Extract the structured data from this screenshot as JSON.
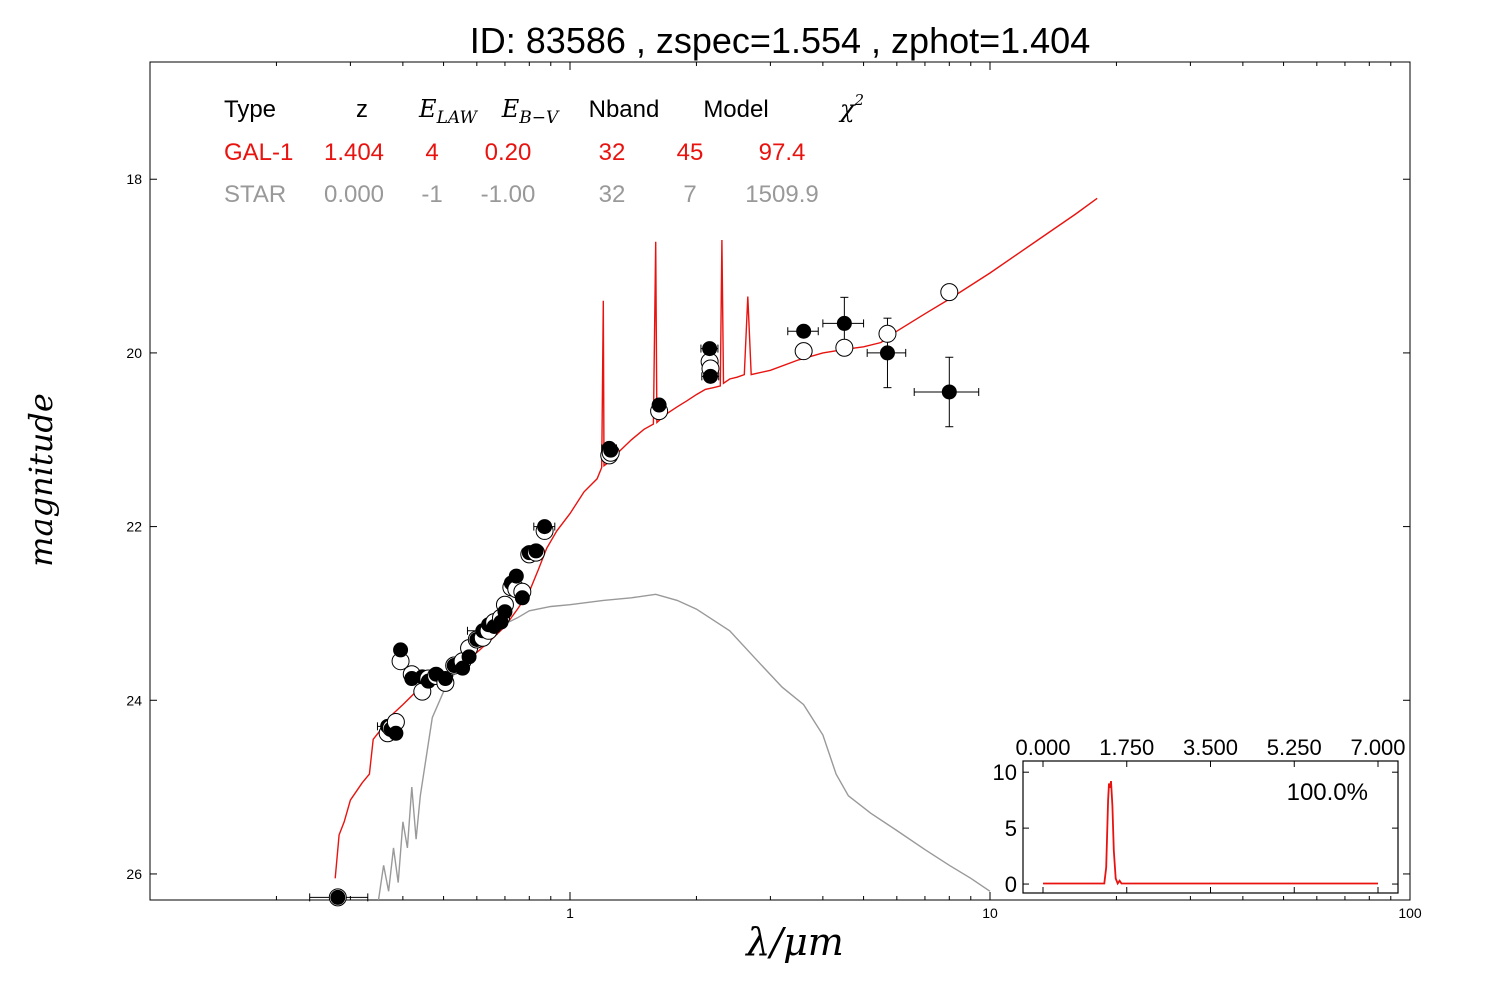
{
  "title": "ID:  83586 , zspec=1.554 , zphot=1.404",
  "chart_data": {
    "type": "scatter",
    "xlabel": "λ/μm",
    "ylabel": "magnitude",
    "x_scale": "log",
    "xlim": [
      0.1,
      100
    ],
    "ylim": [
      26.3,
      16.65
    ],
    "x_ticks": [
      "1",
      "10",
      "100"
    ],
    "y_ticks": [
      "18",
      "20",
      "22",
      "24",
      "26"
    ],
    "fit_table": {
      "headers": [
        "Type",
        "z",
        "E_LAW",
        "E_B−V",
        "Nband",
        "Model",
        "χ²"
      ],
      "rows": [
        {
          "name": "GAL-1",
          "color": "#e8130f",
          "cells": [
            "GAL-1",
            "1.404",
            "4",
            "0.20",
            "32",
            "45",
            "97.4"
          ]
        },
        {
          "name": "STAR",
          "color": "#999999",
          "cells": [
            "STAR",
            "0.000",
            "-1",
            "-1.00",
            "32",
            "7",
            "1509.9"
          ]
        }
      ]
    },
    "series": [
      {
        "role": "galaxy-model",
        "color": "#e8130f",
        "points": [
          [
            0.276,
            26.05
          ],
          [
            0.282,
            25.55
          ],
          [
            0.29,
            25.4
          ],
          [
            0.3,
            25.15
          ],
          [
            0.32,
            24.95
          ],
          [
            0.333,
            24.85
          ],
          [
            0.34,
            24.45
          ],
          [
            0.36,
            24.3
          ],
          [
            0.38,
            24.15
          ],
          [
            0.4,
            24.05
          ],
          [
            0.43,
            23.9
          ],
          [
            0.46,
            23.8
          ],
          [
            0.5,
            23.72
          ],
          [
            0.55,
            23.6
          ],
          [
            0.6,
            23.45
          ],
          [
            0.65,
            23.3
          ],
          [
            0.7,
            23.15
          ],
          [
            0.75,
            22.95
          ],
          [
            0.8,
            22.75
          ],
          [
            0.84,
            22.5
          ],
          [
            0.88,
            22.25
          ],
          [
            0.93,
            22.05
          ],
          [
            1.0,
            21.85
          ],
          [
            1.08,
            21.6
          ],
          [
            1.16,
            21.45
          ],
          [
            1.19,
            21.32
          ],
          [
            1.2,
            19.4
          ],
          [
            1.205,
            21.3
          ],
          [
            1.22,
            21.28
          ],
          [
            1.3,
            21.15
          ],
          [
            1.4,
            21.0
          ],
          [
            1.5,
            20.88
          ],
          [
            1.58,
            20.82
          ],
          [
            1.6,
            18.72
          ],
          [
            1.61,
            20.8
          ],
          [
            1.7,
            20.7
          ],
          [
            1.8,
            20.62
          ],
          [
            1.9,
            20.55
          ],
          [
            2.0,
            20.48
          ],
          [
            2.1,
            20.42
          ],
          [
            2.2,
            20.4
          ],
          [
            2.28,
            20.38
          ],
          [
            2.3,
            18.7
          ],
          [
            2.32,
            20.35
          ],
          [
            2.4,
            20.3
          ],
          [
            2.5,
            20.28
          ],
          [
            2.6,
            20.25
          ],
          [
            2.65,
            19.35
          ],
          [
            2.7,
            20.25
          ],
          [
            3.0,
            20.2
          ],
          [
            3.5,
            20.08
          ],
          [
            4.0,
            20.0
          ],
          [
            4.5,
            19.96
          ],
          [
            5.0,
            19.93
          ],
          [
            5.5,
            19.88
          ],
          [
            6.0,
            19.75
          ],
          [
            7.0,
            19.55
          ],
          [
            8.0,
            19.38
          ],
          [
            10.0,
            19.08
          ],
          [
            13.0,
            18.7
          ],
          [
            16.0,
            18.4
          ],
          [
            18.0,
            18.22
          ]
        ]
      },
      {
        "role": "star-model",
        "color": "#999999",
        "points": [
          [
            0.35,
            26.3
          ],
          [
            0.36,
            25.9
          ],
          [
            0.37,
            26.2
          ],
          [
            0.38,
            25.7
          ],
          [
            0.39,
            26.1
          ],
          [
            0.4,
            25.4
          ],
          [
            0.41,
            25.7
          ],
          [
            0.42,
            25.0
          ],
          [
            0.43,
            25.6
          ],
          [
            0.44,
            25.1
          ],
          [
            0.45,
            24.8
          ],
          [
            0.47,
            24.2
          ],
          [
            0.5,
            23.9
          ],
          [
            0.53,
            23.7
          ],
          [
            0.56,
            23.5
          ],
          [
            0.6,
            23.38
          ],
          [
            0.65,
            23.25
          ],
          [
            0.7,
            23.12
          ],
          [
            0.75,
            23.05
          ],
          [
            0.8,
            22.97
          ],
          [
            0.9,
            22.92
          ],
          [
            1.0,
            22.9
          ],
          [
            1.2,
            22.85
          ],
          [
            1.4,
            22.82
          ],
          [
            1.6,
            22.78
          ],
          [
            1.8,
            22.85
          ],
          [
            2.0,
            22.95
          ],
          [
            2.4,
            23.2
          ],
          [
            2.8,
            23.55
          ],
          [
            3.2,
            23.85
          ],
          [
            3.6,
            24.05
          ],
          [
            4.0,
            24.4
          ],
          [
            4.3,
            24.85
          ],
          [
            4.6,
            25.1
          ],
          [
            5.2,
            25.3
          ],
          [
            6.0,
            25.5
          ],
          [
            7.0,
            25.72
          ],
          [
            8.0,
            25.9
          ],
          [
            9.0,
            26.05
          ],
          [
            10.0,
            26.2
          ]
        ]
      }
    ],
    "photometry": [
      {
        "x": 0.28,
        "obs": 26.27,
        "mod": 26.27,
        "xerr": [
          0.04,
          0.05
        ]
      },
      {
        "x": 0.368,
        "obs": 24.3,
        "mod": 24.38,
        "xerr": [
          0.02,
          0.02
        ]
      },
      {
        "x": 0.375,
        "obs": 24.33,
        "mod": 24.32,
        "xerr": [
          0.01,
          0.01
        ]
      },
      {
        "x": 0.385,
        "obs": 24.38,
        "mod": 24.25,
        "xerr": [
          0.01,
          0.01
        ]
      },
      {
        "x": 0.395,
        "obs": 23.42,
        "mod": 23.55,
        "xerr": [
          0.006,
          0.006
        ]
      },
      {
        "x": 0.42,
        "obs": 23.75,
        "mod": 23.7,
        "xerr": [
          0.01,
          0.01
        ]
      },
      {
        "x": 0.445,
        "obs": 23.73,
        "mod": 23.9,
        "xerr": [
          0.015,
          0.015
        ]
      },
      {
        "x": 0.46,
        "obs": 23.78,
        "mod": 23.75,
        "xerr": [
          0.01,
          0.01
        ]
      },
      {
        "x": 0.48,
        "obs": 23.7,
        "mod": 23.72,
        "xerr": [
          0.01,
          0.01
        ]
      },
      {
        "x": 0.505,
        "obs": 23.75,
        "mod": 23.8,
        "xerr": [
          0.02,
          0.02
        ]
      },
      {
        "x": 0.53,
        "obs": 23.6,
        "mod": 23.6,
        "xerr": [
          0.01,
          0.01
        ]
      },
      {
        "x": 0.555,
        "obs": 23.63,
        "mod": 23.55,
        "xerr": [
          0.01,
          0.01
        ]
      },
      {
        "x": 0.575,
        "obs": 23.5,
        "mod": 23.4,
        "xerr": [
          0.01,
          0.01
        ]
      },
      {
        "x": 0.6,
        "obs": 23.3,
        "mod": 23.3,
        "xerr": [
          0.01,
          0.01
        ]
      },
      {
        "x": 0.62,
        "obs": 23.2,
        "mod": 23.28,
        "xerr": [
          0.05,
          0.05
        ]
      },
      {
        "x": 0.64,
        "obs": 23.13,
        "mod": 23.2,
        "xerr": [
          0.015,
          0.015
        ]
      },
      {
        "x": 0.66,
        "obs": 23.15,
        "mod": 23.1,
        "xerr": [
          0.015,
          0.015
        ]
      },
      {
        "x": 0.685,
        "obs": 23.1,
        "mod": 23.05,
        "xerr": [
          0.01,
          0.01
        ]
      },
      {
        "x": 0.7,
        "obs": 22.98,
        "mod": 22.9,
        "xerr": [
          0.02,
          0.02
        ]
      },
      {
        "x": 0.725,
        "obs": 22.65,
        "mod": 22.7,
        "xerr": [
          0.01,
          0.01
        ]
      },
      {
        "x": 0.745,
        "obs": 22.57,
        "mod": 22.72,
        "xerr": [
          0.01,
          0.01
        ]
      },
      {
        "x": 0.77,
        "obs": 22.82,
        "mod": 22.75,
        "xerr": [
          0.01,
          0.01
        ]
      },
      {
        "x": 0.8,
        "obs": 22.3,
        "mod": 22.32,
        "xerr": [
          0.03,
          0.03
        ]
      },
      {
        "x": 0.83,
        "obs": 22.28,
        "mod": 22.3,
        "xerr": [
          0.01,
          0.01
        ]
      },
      {
        "x": 0.87,
        "obs": 22.0,
        "mod": 22.05,
        "xerr": [
          0.05,
          0.05
        ]
      },
      {
        "x": 1.24,
        "obs": 21.1,
        "mod": 21.18,
        "xerr": [
          0.05,
          0.05
        ]
      },
      {
        "x": 1.25,
        "obs": 21.12,
        "mod": 21.15,
        "xerr": [
          0.03,
          0.03
        ]
      },
      {
        "x": 1.63,
        "obs": 20.6,
        "mod": 20.67,
        "xerr": [
          0.03,
          0.03
        ]
      },
      {
        "x": 2.15,
        "obs": 19.95,
        "mod": 20.1,
        "xerr": [
          0.1,
          0.1
        ]
      },
      {
        "x": 2.16,
        "obs": 20.27,
        "mod": 20.18,
        "xerr": [
          0.1,
          0.1
        ]
      },
      {
        "x": 3.6,
        "obs": 19.75,
        "mod": 19.98,
        "xerr": [
          0.3,
          0.3
        ]
      },
      {
        "x": 4.5,
        "obs": 19.66,
        "mod": 19.94,
        "xerr": [
          0.5,
          0.5
        ],
        "yerr": 0.3
      },
      {
        "x": 5.7,
        "obs": 20.0,
        "mod": 19.78,
        "xerr": [
          0.6,
          0.6
        ],
        "yerr": 0.4
      },
      {
        "x": 8.0,
        "obs": 20.45,
        "mod": 19.3,
        "xerr": [
          1.4,
          1.4
        ],
        "yerr": 0.4
      }
    ],
    "inset": {
      "type": "line",
      "xlim": [
        0,
        7
      ],
      "ylim": [
        -0.8,
        11
      ],
      "x_ticks": [
        "0.000",
        "1.750",
        "3.500",
        "5.250",
        "7.000"
      ],
      "y_ticks": [
        "0",
        "5",
        "10"
      ],
      "annotation": "100.0%",
      "color": "#e8130f",
      "points": [
        [
          0.0,
          0.05
        ],
        [
          1.28,
          0.05
        ],
        [
          1.32,
          1.5
        ],
        [
          1.36,
          7.5
        ],
        [
          1.38,
          9.0
        ],
        [
          1.4,
          8.6
        ],
        [
          1.42,
          9.2
        ],
        [
          1.45,
          7.0
        ],
        [
          1.48,
          3.0
        ],
        [
          1.52,
          0.5
        ],
        [
          1.56,
          0.05
        ],
        [
          1.6,
          0.3
        ],
        [
          1.64,
          0.05
        ],
        [
          7.0,
          0.05
        ]
      ]
    }
  }
}
